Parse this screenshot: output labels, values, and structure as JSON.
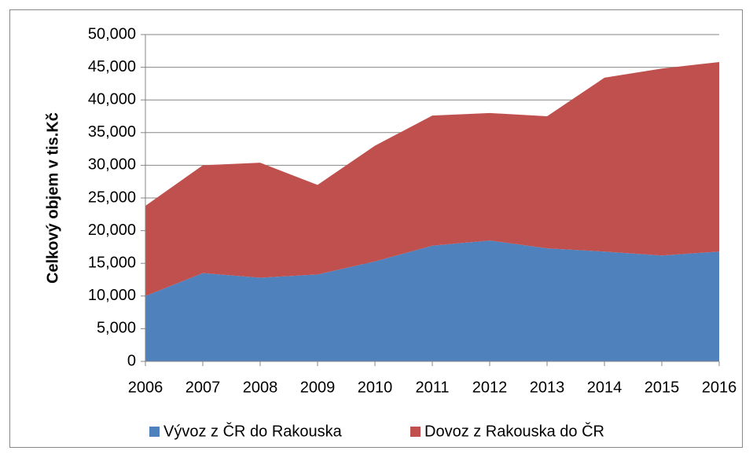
{
  "chart_data": {
    "type": "stacked_area",
    "y_label": "Celkový objem v tis.Kč",
    "categories": [
      "2006",
      "2007",
      "2008",
      "2009",
      "2010",
      "2011",
      "2012",
      "2013",
      "2014",
      "2015",
      "2016"
    ],
    "series": [
      {
        "name": "Vývoz z ČR do Rakouska",
        "color": "#4f81bd",
        "values": [
          10000,
          13500,
          12800,
          13300,
          15300,
          17700,
          18500,
          17300,
          16800,
          16200,
          16800
        ]
      },
      {
        "name": "Dovoz z Rakouska do ČR",
        "color": "#c0504d",
        "values": [
          13800,
          16500,
          17600,
          13700,
          17700,
          19900,
          19500,
          20200,
          26600,
          28600,
          29000
        ]
      }
    ],
    "ylim": [
      0,
      50000
    ],
    "yticks": [
      0,
      {
        "value": 5000,
        "label": "5,000"
      },
      {
        "value": 10000,
        "label": "10,000"
      },
      {
        "value": 15000,
        "label": "15,000"
      },
      {
        "value": 20000,
        "label": "20,000"
      },
      {
        "value": 25000,
        "label": "25,000"
      },
      {
        "value": 30000,
        "label": "30,000"
      },
      {
        "value": 35000,
        "label": "35,000"
      },
      {
        "value": 40000,
        "label": "40,000"
      },
      {
        "value": 45000,
        "label": "45,000"
      },
      {
        "value": 50000,
        "label": "50,000"
      }
    ],
    "grid": true,
    "legend": "bottom"
  }
}
